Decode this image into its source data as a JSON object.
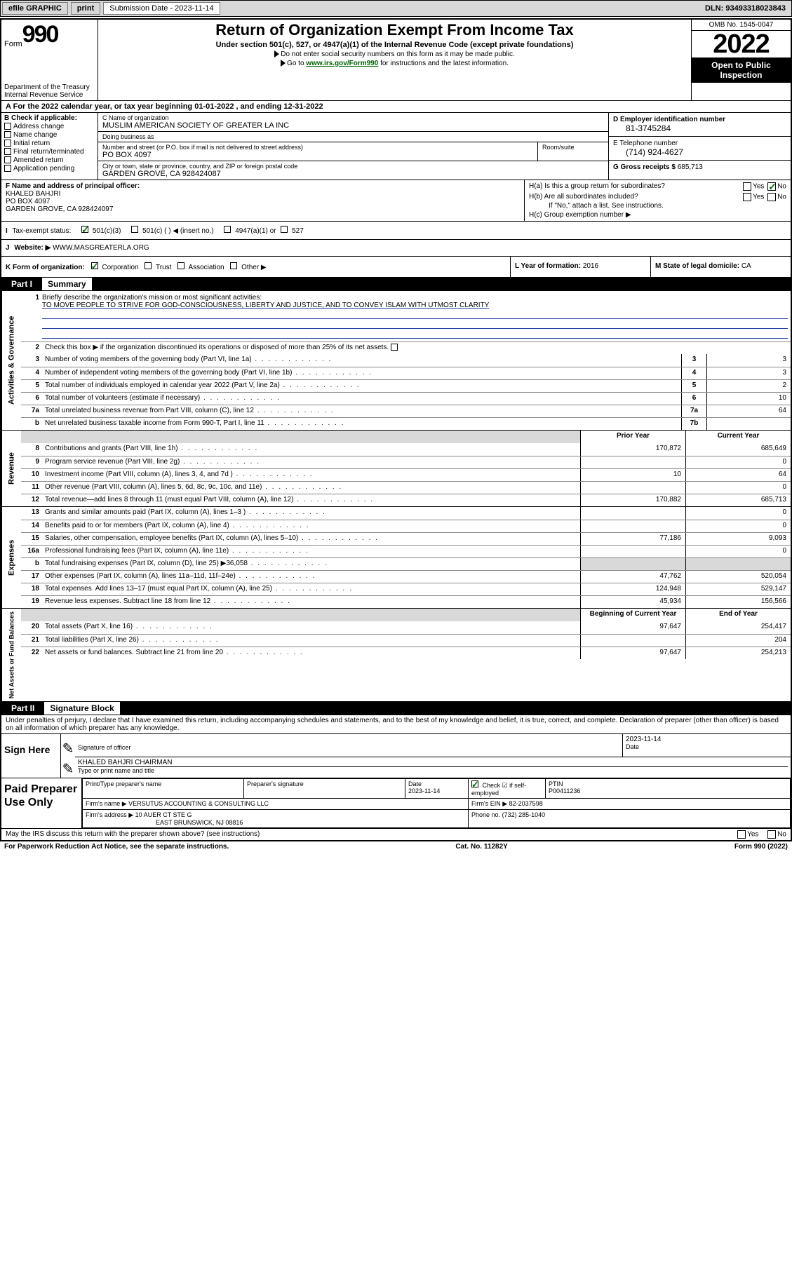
{
  "topbar": {
    "efile": "efile GRAPHIC",
    "print": "print",
    "submission_label": "Submission Date - 2023-11-14",
    "dln": "DLN: 93493318023843"
  },
  "header": {
    "form_word": "Form",
    "form_num": "990",
    "title": "Return of Organization Exempt From Income Tax",
    "subtitle": "Under section 501(c), 527, or 4947(a)(1) of the Internal Revenue Code (except private foundations)",
    "note1": "Do not enter social security numbers on this form as it may be made public.",
    "note2_pre": "Go to ",
    "note2_link": "www.irs.gov/Form990",
    "note2_post": " for instructions and the latest information.",
    "dept": "Department of the Treasury\nInternal Revenue Service",
    "omb": "OMB No. 1545-0047",
    "year": "2022",
    "open": "Open to Public Inspection"
  },
  "rowA": "For the 2022 calendar year, or tax year beginning 01-01-2022    , and ending 12-31-2022",
  "colB": {
    "label": "B Check if applicable:",
    "items": [
      "Address change",
      "Name change",
      "Initial return",
      "Final return/terminated",
      "Amended return",
      "Application pending"
    ]
  },
  "colC": {
    "name_lbl": "C Name of organization",
    "name": "MUSLIM AMERICAN SOCIETY OF GREATER LA INC",
    "dba_lbl": "Doing business as",
    "dba": "",
    "addr_lbl": "Number and street (or P.O. box if mail is not delivered to street address)",
    "room_lbl": "Room/suite",
    "addr": "PO BOX 4097",
    "city_lbl": "City or town, state or province, country, and ZIP or foreign postal code",
    "city": "GARDEN GROVE, CA  928424087"
  },
  "colD": {
    "d_lbl": "D Employer identification number",
    "d_val": "81-3745284",
    "e_lbl": "E Telephone number",
    "e_val": "(714) 924-4627",
    "g_lbl": "G Gross receipts $",
    "g_val": "685,713"
  },
  "rowF": {
    "lbl": "F  Name and address of principal officer:",
    "name": "KHALED BAHJRI",
    "addr1": "PO BOX 4097",
    "addr2": "GARDEN GROVE, CA  928424097"
  },
  "rowH": {
    "ha": "H(a)  Is this a group return for subordinates?",
    "hb": "H(b)  Are all subordinates included?",
    "hb_note": "If \"No,\" attach a list. See instructions.",
    "hc": "H(c)  Group exemption number ▶"
  },
  "rowI": {
    "lbl": "Tax-exempt status:",
    "opts": [
      "501(c)(3)",
      "501(c) (  ) ◀ (insert no.)",
      "4947(a)(1) or",
      "527"
    ]
  },
  "rowJ": {
    "lbl": "Website: ▶",
    "val": "WWW.MASGREATERLA.ORG"
  },
  "rowK": {
    "lbl": "K Form of organization:",
    "opts": [
      "Corporation",
      "Trust",
      "Association",
      "Other ▶"
    ]
  },
  "rowL": {
    "lbl": "L Year of formation:",
    "val": "2016"
  },
  "rowM": {
    "lbl": "M State of legal domicile:",
    "val": "CA"
  },
  "part1": {
    "lbl": "Part I",
    "title": "Summary"
  },
  "gov": {
    "tab": "Activities & Governance",
    "q1_lbl": "Briefly describe the organization's mission or most significant activities:",
    "q1_val": "TO MOVE PEOPLE TO STRIVE FOR GOD-CONSCIOUSNESS, LIBERTY AND JUSTICE, AND TO CONVEY ISLAM WITH UTMOST CLARITY",
    "q2": "Check this box ▶      if the organization discontinued its operations or disposed of more than 25% of its net assets.",
    "rows": [
      {
        "n": "3",
        "t": "Number of voting members of the governing body (Part VI, line 1a)",
        "box": "3",
        "v": "3"
      },
      {
        "n": "4",
        "t": "Number of independent voting members of the governing body (Part VI, line 1b)",
        "box": "4",
        "v": "3"
      },
      {
        "n": "5",
        "t": "Total number of individuals employed in calendar year 2022 (Part V, line 2a)",
        "box": "5",
        "v": "2"
      },
      {
        "n": "6",
        "t": "Total number of volunteers (estimate if necessary)",
        "box": "6",
        "v": "10"
      },
      {
        "n": "7a",
        "t": "Total unrelated business revenue from Part VIII, column (C), line 12",
        "box": "7a",
        "v": "64"
      },
      {
        "n": "b",
        "t": "Net unrelated business taxable income from Form 990-T, Part I, line 11",
        "box": "7b",
        "v": ""
      }
    ]
  },
  "rev": {
    "tab": "Revenue",
    "hdr_prior": "Prior Year",
    "hdr_curr": "Current Year",
    "rows": [
      {
        "n": "8",
        "t": "Contributions and grants (Part VIII, line 1h)",
        "p": "170,872",
        "c": "685,649"
      },
      {
        "n": "9",
        "t": "Program service revenue (Part VIII, line 2g)",
        "p": "",
        "c": "0"
      },
      {
        "n": "10",
        "t": "Investment income (Part VIII, column (A), lines 3, 4, and 7d )",
        "p": "10",
        "c": "64"
      },
      {
        "n": "11",
        "t": "Other revenue (Part VIII, column (A), lines 5, 6d, 8c, 9c, 10c, and 11e)",
        "p": "",
        "c": "0"
      },
      {
        "n": "12",
        "t": "Total revenue—add lines 8 through 11 (must equal Part VIII, column (A), line 12)",
        "p": "170,882",
        "c": "685,713"
      }
    ]
  },
  "exp": {
    "tab": "Expenses",
    "rows": [
      {
        "n": "13",
        "t": "Grants and similar amounts paid (Part IX, column (A), lines 1–3 )",
        "p": "",
        "c": "0"
      },
      {
        "n": "14",
        "t": "Benefits paid to or for members (Part IX, column (A), line 4)",
        "p": "",
        "c": "0"
      },
      {
        "n": "15",
        "t": "Salaries, other compensation, employee benefits (Part IX, column (A), lines 5–10)",
        "p": "77,186",
        "c": "9,093"
      },
      {
        "n": "16a",
        "t": "Professional fundraising fees (Part IX, column (A), line 11e)",
        "p": "",
        "c": "0"
      },
      {
        "n": "b",
        "t": "Total fundraising expenses (Part IX, column (D), line 25) ▶36,058",
        "p": "GREY",
        "c": "GREY"
      },
      {
        "n": "17",
        "t": "Other expenses (Part IX, column (A), lines 11a–11d, 11f–24e)",
        "p": "47,762",
        "c": "520,054"
      },
      {
        "n": "18",
        "t": "Total expenses. Add lines 13–17 (must equal Part IX, column (A), line 25)",
        "p": "124,948",
        "c": "529,147"
      },
      {
        "n": "19",
        "t": "Revenue less expenses. Subtract line 18 from line 12",
        "p": "45,934",
        "c": "156,566"
      }
    ]
  },
  "net": {
    "tab": "Net Assets or Fund Balances",
    "hdr_beg": "Beginning of Current Year",
    "hdr_end": "End of Year",
    "rows": [
      {
        "n": "20",
        "t": "Total assets (Part X, line 16)",
        "p": "97,647",
        "c": "254,417"
      },
      {
        "n": "21",
        "t": "Total liabilities (Part X, line 26)",
        "p": "",
        "c": "204"
      },
      {
        "n": "22",
        "t": "Net assets or fund balances. Subtract line 21 from line 20",
        "p": "97,647",
        "c": "254,213"
      }
    ]
  },
  "part2": {
    "lbl": "Part II",
    "title": "Signature Block"
  },
  "declare": "Under penalties of perjury, I declare that I have examined this return, including accompanying schedules and statements, and to the best of my knowledge and belief, it is true, correct, and complete. Declaration of preparer (other than officer) is based on all information of which preparer has any knowledge.",
  "sign": {
    "here": "Sign Here",
    "sig_lbl": "Signature of officer",
    "date_lbl": "Date",
    "date_val": "2023-11-14",
    "name": "KHALED BAHJRI CHAIRMAN",
    "name_lbl": "Type or print name and title"
  },
  "prep": {
    "here": "Paid Preparer Use Only",
    "h1": "Print/Type preparer's name",
    "h2": "Preparer's signature",
    "h3": "Date",
    "h3v": "2023-11-14",
    "h4": "Check ☑ if self-employed",
    "h5": "PTIN",
    "h5v": "P00411236",
    "firm_name_lbl": "Firm's name     ▶",
    "firm_name": "VERSUTUS ACCOUNTING & CONSULTING LLC",
    "firm_ein_lbl": "Firm's EIN ▶",
    "firm_ein": "82-2037598",
    "firm_addr_lbl": "Firm's address ▶",
    "firm_addr1": "10 AUER CT STE G",
    "firm_addr2": "EAST BRUNSWICK, NJ  08816",
    "phone_lbl": "Phone no.",
    "phone": "(732) 285-1040"
  },
  "may": "May the IRS discuss this return with the preparer shown above? (see instructions)",
  "footer": {
    "left": "For Paperwork Reduction Act Notice, see the separate instructions.",
    "mid": "Cat. No. 11282Y",
    "right_pre": "Form ",
    "right_bold": "990",
    "right_post": " (2022)"
  }
}
